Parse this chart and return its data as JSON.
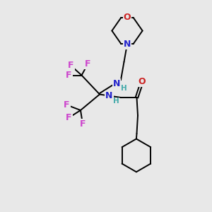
{
  "bg_color": "#e8e8e8",
  "bond_color": "#000000",
  "N_color": "#2222cc",
  "O_color": "#cc2222",
  "F_color": "#cc44cc",
  "H_color": "#44aaaa",
  "figsize": [
    3.0,
    3.0
  ],
  "dpi": 100,
  "lw": 1.4,
  "fs": 9.0,
  "fs_small": 7.5,
  "xlim": [
    0,
    10
  ],
  "ylim": [
    0,
    10
  ]
}
